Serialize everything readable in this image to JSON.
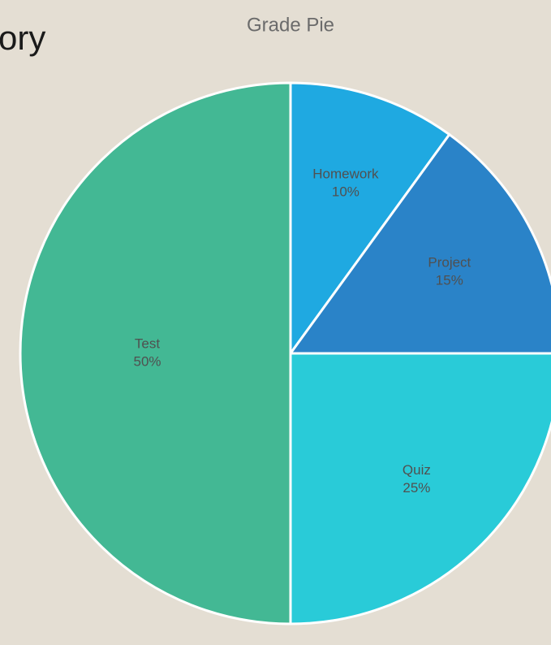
{
  "heading": "ory",
  "chart_data": {
    "type": "pie",
    "title": "Grade Pie",
    "categories": [
      "Homework",
      "Project",
      "Quiz",
      "Test"
    ],
    "values": [
      10,
      15,
      25,
      50
    ],
    "value_labels": [
      "10%",
      "15%",
      "25%",
      "50%"
    ],
    "colors": [
      "#1fa9e1",
      "#2a83c8",
      "#29cbd8",
      "#43b894"
    ]
  }
}
